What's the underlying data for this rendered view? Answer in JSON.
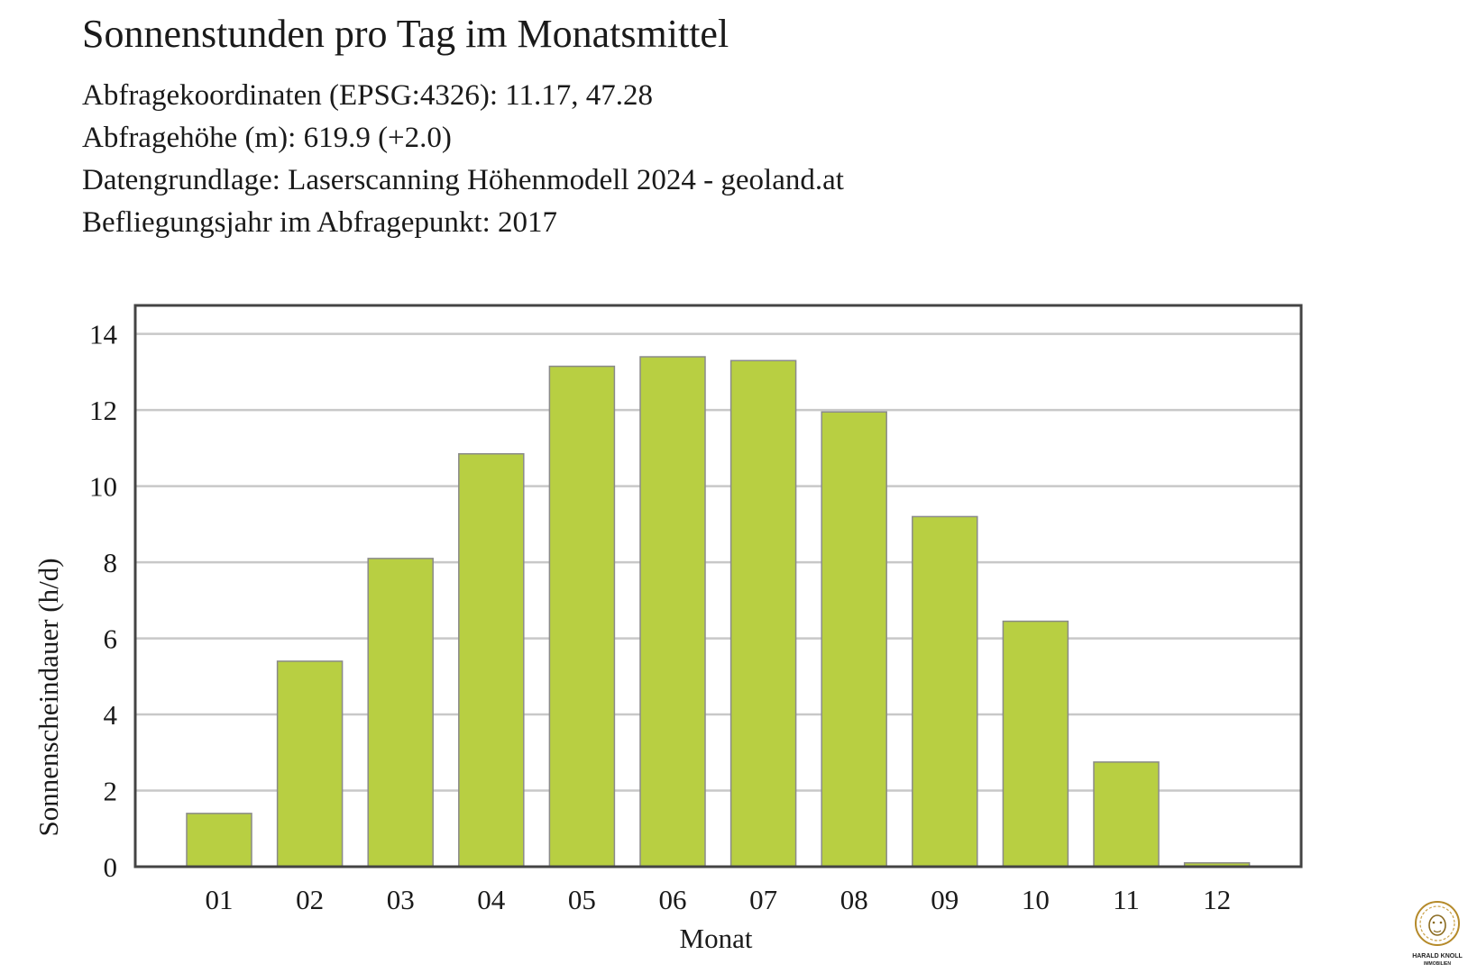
{
  "header": {
    "title": "Sonnenstunden pro Tag im Monatsmittel",
    "lines": [
      "Abfragekoordinaten (EPSG:4326): 11.17, 47.28",
      "Abfragehöhe (m): 619.9 (+2.0)",
      "Datengrundlage: Laserscanning Höhenmodell 2024 - geoland.at",
      "Befliegungsjahr im Abfragepunkt: 2017"
    ]
  },
  "chart_data": {
    "type": "bar",
    "title": "Sonnenstunden pro Tag im Monatsmittel",
    "xlabel": "Monat",
    "ylabel": "Sonnenscheindauer (h/d)",
    "categories": [
      "01",
      "02",
      "03",
      "04",
      "05",
      "06",
      "07",
      "08",
      "09",
      "10",
      "11",
      "12"
    ],
    "values": [
      1.4,
      5.4,
      8.1,
      10.85,
      13.15,
      13.4,
      13.3,
      11.95,
      9.2,
      6.45,
      2.75,
      0.1
    ],
    "ylim": [
      0,
      14.75
    ],
    "yticks": [
      "0",
      "2",
      "4",
      "6",
      "8",
      "10",
      "12",
      "14"
    ],
    "grid": true,
    "legend": "none",
    "colors": {
      "bar": "#b8cf42",
      "bar_edge": "#8a8a8a",
      "grid": "#c8c8c8",
      "frame": "#444444"
    }
  },
  "logo": {
    "name": "lion-logo-icon",
    "line1": "HARALD KNOLL",
    "line2": "IMMOBILIEN"
  }
}
